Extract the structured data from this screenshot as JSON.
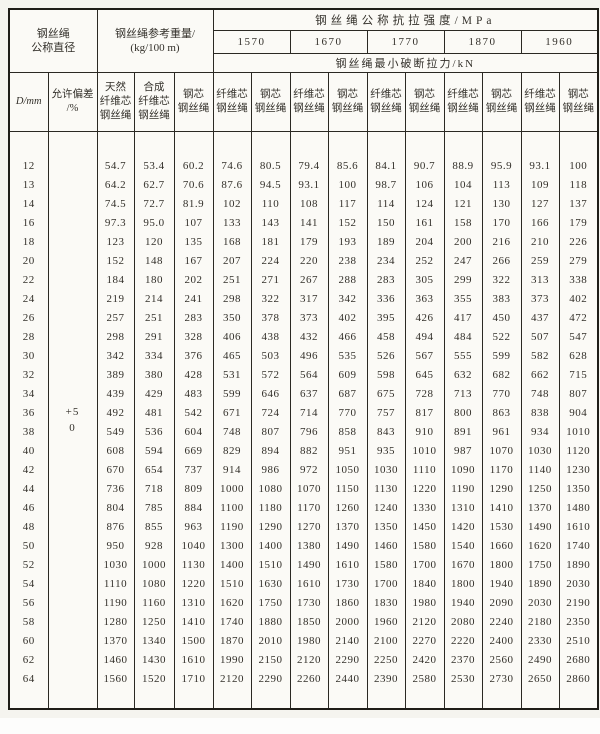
{
  "colors": {
    "paper": "#fbfaf6",
    "page_background": "#f5f4ef",
    "line_ink": "#2b2923",
    "text_ink": "#33302a"
  },
  "table": {
    "header": {
      "diameter_group": "钢丝绳\n公称直径",
      "weight_group": "钢丝绳参考重量/\n(kg/100 m)",
      "strength_title": "钢丝绳公称抗拉强度/MPa",
      "grades": [
        "1570",
        "1670",
        "1770",
        "1870",
        "1960"
      ],
      "breaking_title": "钢丝绳最小破断拉力/kN",
      "col_d": "D/mm",
      "col_tolerance": "允许偏差\n/%",
      "col_natural_fiber": "天然\n纤维芯\n钢丝绳",
      "col_synthetic_fiber": "合成\n纤维芯\n钢丝绳",
      "col_steel_core": "钢芯\n钢丝绳",
      "pair": {
        "fiber": "纤维芯\n钢丝绳",
        "steel": "钢芯\n钢丝绳"
      }
    },
    "tolerance": {
      "plus": "+5",
      "zero": "0"
    },
    "rows": [
      {
        "d": "12",
        "values": [
          "54.7",
          "53.4",
          "60.2",
          "74.6",
          "80.5",
          "79.4",
          "85.6",
          "84.1",
          "90.7",
          "88.9",
          "95.9",
          "93.1",
          "100"
        ]
      },
      {
        "d": "13",
        "values": [
          "64.2",
          "62.7",
          "70.6",
          "87.6",
          "94.5",
          "93.1",
          "100",
          "98.7",
          "106",
          "104",
          "113",
          "109",
          "118"
        ]
      },
      {
        "d": "14",
        "values": [
          "74.5",
          "72.7",
          "81.9",
          "102",
          "110",
          "108",
          "117",
          "114",
          "124",
          "121",
          "130",
          "127",
          "137"
        ]
      },
      {
        "d": "16",
        "values": [
          "97.3",
          "95.0",
          "107",
          "133",
          "143",
          "141",
          "152",
          "150",
          "161",
          "158",
          "170",
          "166",
          "179"
        ]
      },
      {
        "d": "18",
        "values": [
          "123",
          "120",
          "135",
          "168",
          "181",
          "179",
          "193",
          "189",
          "204",
          "200",
          "216",
          "210",
          "226"
        ]
      },
      {
        "d": "20",
        "values": [
          "152",
          "148",
          "167",
          "207",
          "224",
          "220",
          "238",
          "234",
          "252",
          "247",
          "266",
          "259",
          "279"
        ]
      },
      {
        "d": "22",
        "values": [
          "184",
          "180",
          "202",
          "251",
          "271",
          "267",
          "288",
          "283",
          "305",
          "299",
          "322",
          "313",
          "338"
        ]
      },
      {
        "d": "24",
        "values": [
          "219",
          "214",
          "241",
          "298",
          "322",
          "317",
          "342",
          "336",
          "363",
          "355",
          "383",
          "373",
          "402"
        ]
      },
      {
        "d": "26",
        "values": [
          "257",
          "251",
          "283",
          "350",
          "378",
          "373",
          "402",
          "395",
          "426",
          "417",
          "450",
          "437",
          "472"
        ]
      },
      {
        "d": "28",
        "values": [
          "298",
          "291",
          "328",
          "406",
          "438",
          "432",
          "466",
          "458",
          "494",
          "484",
          "522",
          "507",
          "547"
        ]
      },
      {
        "d": "30",
        "values": [
          "342",
          "334",
          "376",
          "465",
          "503",
          "496",
          "535",
          "526",
          "567",
          "555",
          "599",
          "582",
          "628"
        ]
      },
      {
        "d": "32",
        "values": [
          "389",
          "380",
          "428",
          "531",
          "572",
          "564",
          "609",
          "598",
          "645",
          "632",
          "682",
          "662",
          "715"
        ]
      },
      {
        "d": "34",
        "values": [
          "439",
          "429",
          "483",
          "599",
          "646",
          "637",
          "687",
          "675",
          "728",
          "713",
          "770",
          "748",
          "807"
        ]
      },
      {
        "d": "36",
        "values": [
          "492",
          "481",
          "542",
          "671",
          "724",
          "714",
          "770",
          "757",
          "817",
          "800",
          "863",
          "838",
          "904"
        ]
      },
      {
        "d": "38",
        "values": [
          "549",
          "536",
          "604",
          "748",
          "807",
          "796",
          "858",
          "843",
          "910",
          "891",
          "961",
          "934",
          "1010"
        ]
      },
      {
        "d": "40",
        "values": [
          "608",
          "594",
          "669",
          "829",
          "894",
          "882",
          "951",
          "935",
          "1010",
          "987",
          "1070",
          "1030",
          "1120"
        ]
      },
      {
        "d": "42",
        "values": [
          "670",
          "654",
          "737",
          "914",
          "986",
          "972",
          "1050",
          "1030",
          "1110",
          "1090",
          "1170",
          "1140",
          "1230"
        ]
      },
      {
        "d": "44",
        "values": [
          "736",
          "718",
          "809",
          "1000",
          "1080",
          "1070",
          "1150",
          "1130",
          "1220",
          "1190",
          "1290",
          "1250",
          "1350"
        ]
      },
      {
        "d": "46",
        "values": [
          "804",
          "785",
          "884",
          "1100",
          "1180",
          "1170",
          "1260",
          "1240",
          "1330",
          "1310",
          "1410",
          "1370",
          "1480"
        ]
      },
      {
        "d": "48",
        "values": [
          "876",
          "855",
          "963",
          "1190",
          "1290",
          "1270",
          "1370",
          "1350",
          "1450",
          "1420",
          "1530",
          "1490",
          "1610"
        ]
      },
      {
        "d": "50",
        "values": [
          "950",
          "928",
          "1040",
          "1300",
          "1400",
          "1380",
          "1490",
          "1460",
          "1580",
          "1540",
          "1660",
          "1620",
          "1740"
        ]
      },
      {
        "d": "52",
        "values": [
          "1030",
          "1000",
          "1130",
          "1400",
          "1510",
          "1490",
          "1610",
          "1580",
          "1700",
          "1670",
          "1800",
          "1750",
          "1890"
        ]
      },
      {
        "d": "54",
        "values": [
          "1110",
          "1080",
          "1220",
          "1510",
          "1630",
          "1610",
          "1730",
          "1700",
          "1840",
          "1800",
          "1940",
          "1890",
          "2030"
        ]
      },
      {
        "d": "56",
        "values": [
          "1190",
          "1160",
          "1310",
          "1620",
          "1750",
          "1730",
          "1860",
          "1830",
          "1980",
          "1940",
          "2090",
          "2030",
          "2190"
        ]
      },
      {
        "d": "58",
        "values": [
          "1280",
          "1250",
          "1410",
          "1740",
          "1880",
          "1850",
          "2000",
          "1960",
          "2120",
          "2080",
          "2240",
          "2180",
          "2350"
        ]
      },
      {
        "d": "60",
        "values": [
          "1370",
          "1340",
          "1500",
          "1870",
          "2010",
          "1980",
          "2140",
          "2100",
          "2270",
          "2220",
          "2400",
          "2330",
          "2510"
        ]
      },
      {
        "d": "62",
        "values": [
          "1460",
          "1430",
          "1610",
          "1990",
          "2150",
          "2120",
          "2290",
          "2250",
          "2420",
          "2370",
          "2560",
          "2490",
          "2680"
        ]
      },
      {
        "d": "64",
        "values": [
          "1560",
          "1520",
          "1710",
          "2120",
          "2290",
          "2260",
          "2440",
          "2390",
          "2580",
          "2530",
          "2730",
          "2650",
          "2860"
        ]
      }
    ]
  }
}
